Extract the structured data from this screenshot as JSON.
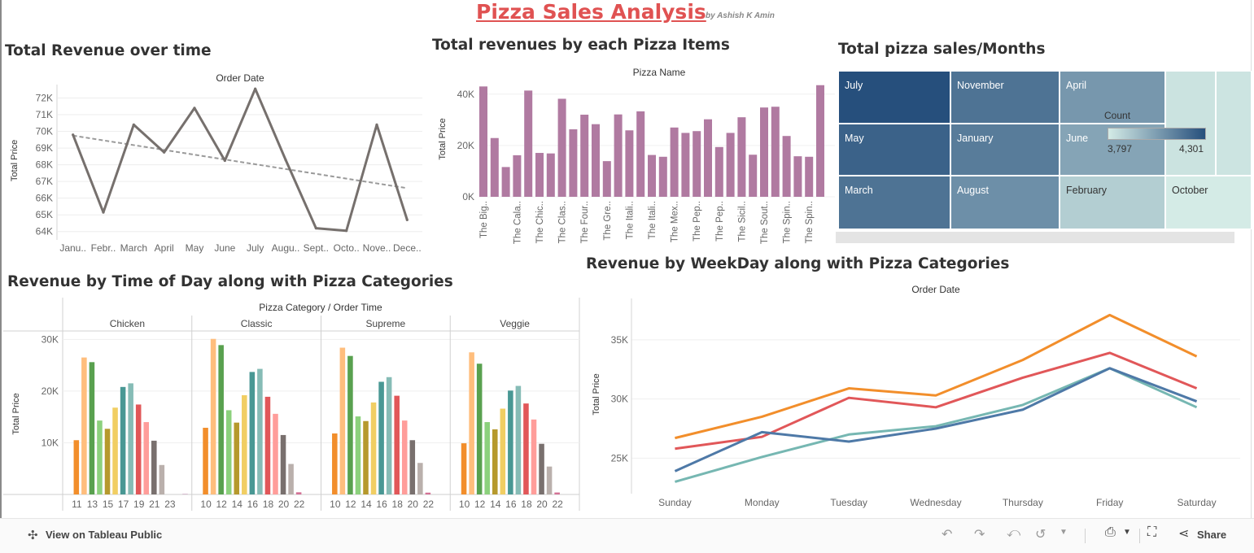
{
  "header": {
    "title": "Pizza Sales Analysis",
    "byline": "by Ashish K Amin"
  },
  "sheets": {
    "revenue_over_time": "Total Revenue over time",
    "revenue_by_item": "Total revenues by each Pizza Items",
    "sales_by_month": "Total pizza sales/Months",
    "revenue_by_time": "Revenue by Time of Day along with Pizza Categories",
    "revenue_by_weekday": "Revenue by WeekDay along with Pizza Categories"
  },
  "colors": {
    "line_grey": "#76706d",
    "trend": "#9a9a9a",
    "bar_purple": "#b07aa1",
    "accent_red": "#e05252",
    "weekday_orange": "#f28e2b",
    "weekday_red": "#e15759",
    "weekday_teal": "#76b7b2",
    "weekday_blue": "#4e79a7"
  },
  "chart_data": [
    {
      "type": "line",
      "xlabel": "Order Date",
      "ylabel": "Total Price",
      "categories": [
        "Janu..",
        "Febr..",
        "March",
        "April",
        "May",
        "June",
        "July",
        "Augu..",
        "Sept..",
        "Octo..",
        "Nove..",
        "Dece.."
      ],
      "values": [
        69800,
        65150,
        70400,
        68750,
        71400,
        68250,
        72550,
        68300,
        64200,
        64050,
        70400,
        64700
      ],
      "trend_line": {
        "start": 69750,
        "end": 66600
      },
      "yticks": [
        "64K",
        "65K",
        "66K",
        "67K",
        "68K",
        "69K",
        "70K",
        "71K",
        "72K"
      ],
      "ylim": [
        63500,
        73000
      ]
    },
    {
      "type": "bar",
      "xlabel": "Pizza Name",
      "ylabel": "Total Price",
      "yticks": [
        "0K",
        "20K",
        "40K"
      ],
      "ylim": [
        0,
        45000
      ],
      "categories": [
        "The Big..",
        "",
        "",
        "The Cala..",
        "",
        "The Chic..",
        "",
        "The Clas..",
        "",
        "The Four..",
        "",
        "The Gre..",
        "",
        "The Itali..",
        "",
        "The Itali..",
        "",
        "The Mex..",
        "",
        "The Pep..",
        "",
        "The Pep..",
        "",
        "The Sicil..",
        "",
        "The Sout..",
        "",
        "The Spin..",
        "",
        "The Spin..",
        ""
      ],
      "values": [
        43000,
        22900,
        11600,
        16200,
        41400,
        17100,
        16900,
        38200,
        26300,
        32000,
        28300,
        13900,
        32100,
        25900,
        33300,
        16300,
        15600,
        27000,
        24900,
        25600,
        30200,
        19400,
        24900,
        31000,
        16400,
        34800,
        35100,
        23700,
        15800,
        15600,
        43500
      ]
    },
    {
      "type": "heatmap",
      "title": "Count",
      "color_range": [
        "3,797",
        "4,301"
      ],
      "cells": [
        {
          "label": "July",
          "value": 4301
        },
        {
          "label": "May",
          "value": 4239
        },
        {
          "label": "March",
          "value": 4186
        },
        {
          "label": "November",
          "value": 4185
        },
        {
          "label": "January",
          "value": 4156
        },
        {
          "label": "August",
          "value": 4094
        },
        {
          "label": "April",
          "value": 4067
        },
        {
          "label": "June",
          "value": 4025
        },
        {
          "label": "February",
          "value": 3892
        },
        {
          "label": "",
          "value": 3824
        },
        {
          "label": "",
          "value": 3819
        },
        {
          "label": "October",
          "value": 3797
        }
      ]
    },
    {
      "type": "bar",
      "xlabel": "Pizza Category / Order Time",
      "ylabel": "Total Price",
      "yticks": [
        "10K",
        "20K",
        "30K"
      ],
      "ylim": [
        0,
        31000
      ],
      "hour_colors": [
        "#4e79a7",
        "#f28e2b",
        "#ffbe7d",
        "#59a14f",
        "#8cd17d",
        "#b6992d",
        "#f1ce63",
        "#499894",
        "#86bcb6",
        "#e15759",
        "#ff9d9a",
        "#79706e",
        "#bab0ac",
        "#d37295",
        "#fabfd2",
        "#b07aa1"
      ],
      "panels": [
        {
          "name": "Chicken",
          "tick_labels": [
            "11",
            "13",
            "15",
            "17",
            "19",
            "21",
            "23"
          ],
          "values": [
            0,
            10500,
            26500,
            25600,
            14300,
            12700,
            16800,
            20800,
            21500,
            17400,
            14000,
            10400,
            5700,
            0,
            0,
            80
          ]
        },
        {
          "name": "Classic",
          "tick_labels": [
            "10",
            "12",
            "14",
            "16",
            "18",
            "20",
            "22"
          ],
          "values": [
            0,
            12900,
            30100,
            28900,
            16300,
            13900,
            19200,
            23700,
            24300,
            18900,
            15600,
            11500,
            5900,
            420,
            0,
            0
          ]
        },
        {
          "name": "Supreme",
          "tick_labels": [
            "10",
            "12",
            "14",
            "16",
            "18",
            "20",
            "22"
          ],
          "values": [
            0,
            11800,
            28400,
            26800,
            15100,
            14200,
            17800,
            21800,
            22700,
            19100,
            14300,
            10500,
            6100,
            350,
            0,
            0
          ]
        },
        {
          "name": "Veggie",
          "tick_labels": [
            "10",
            "12",
            "14",
            "16",
            "18",
            "20",
            "22"
          ],
          "values": [
            0,
            9900,
            27500,
            25300,
            14000,
            12600,
            16600,
            20100,
            21000,
            17600,
            14500,
            9800,
            5400,
            380,
            0,
            0
          ]
        }
      ]
    },
    {
      "type": "line",
      "xlabel": "Order Date",
      "ylabel": "Total Price",
      "categories": [
        "Sunday",
        "Monday",
        "Tuesday",
        "Wednesday",
        "Thursday",
        "Friday",
        "Saturday"
      ],
      "yticks": [
        "25K",
        "30K",
        "35K"
      ],
      "ylim": [
        22000,
        38500
      ],
      "series": [
        {
          "color": "#f28e2b",
          "values": [
            26700,
            28500,
            30900,
            30300,
            33300,
            37100,
            33600
          ]
        },
        {
          "color": "#e15759",
          "values": [
            25800,
            26800,
            30100,
            29300,
            31800,
            33900,
            30900
          ]
        },
        {
          "color": "#76b7b2",
          "values": [
            23000,
            25100,
            27000,
            27700,
            29500,
            32600,
            29300
          ]
        },
        {
          "color": "#4e79a7",
          "values": [
            23900,
            27200,
            26400,
            27500,
            29100,
            32600,
            29800
          ]
        }
      ]
    }
  ],
  "toolbar": {
    "view_label": "View on Tableau Public",
    "share_label": "Share",
    "icons": [
      "undo-icon",
      "redo-icon",
      "revert-icon",
      "refresh-icon",
      "pause-icon",
      "download-icon",
      "fullscreen-icon",
      "share-icon"
    ]
  }
}
